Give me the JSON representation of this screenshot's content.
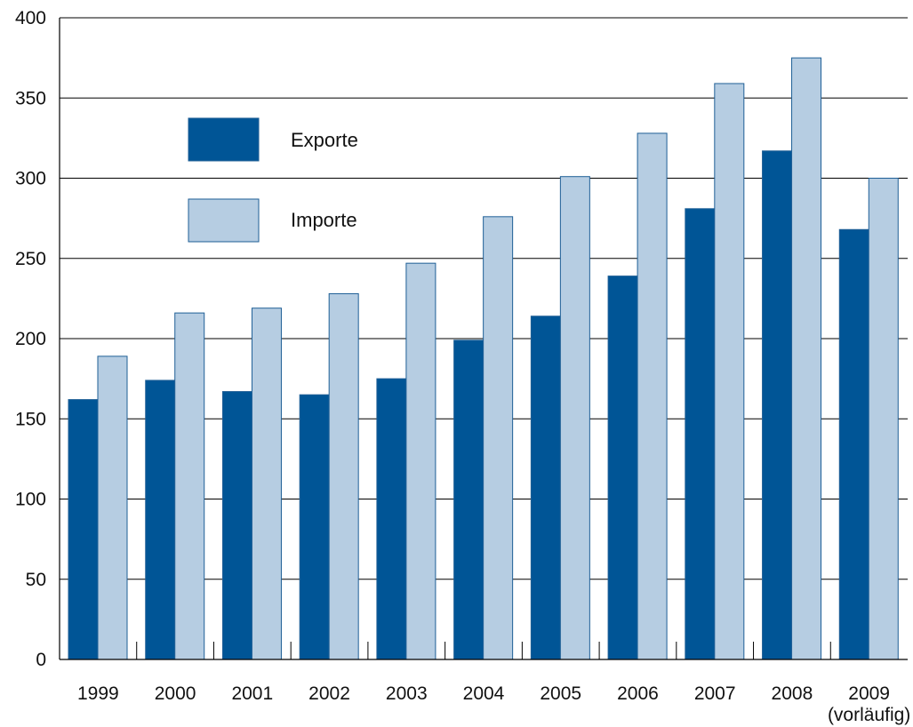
{
  "chart_data": {
    "type": "bar",
    "categories": [
      "1999",
      "2000",
      "2001",
      "2002",
      "2003",
      "2004",
      "2005",
      "2006",
      "2007",
      "2008",
      "2009"
    ],
    "category_sublabels": [
      "",
      "",
      "",
      "",
      "",
      "",
      "",
      "",
      "",
      "",
      "(vorläufig)"
    ],
    "series": [
      {
        "name": "Exporte",
        "color": "#005596",
        "values": [
          162,
          174,
          167,
          165,
          175,
          199,
          214,
          239,
          281,
          317,
          268
        ]
      },
      {
        "name": "Importe",
        "color": "#b6cde2",
        "values": [
          189,
          216,
          219,
          228,
          247,
          276,
          301,
          328,
          359,
          375,
          300
        ]
      }
    ],
    "yticks": [
      "0",
      "50",
      "100",
      "150",
      "200",
      "250",
      "300",
      "350",
      "400"
    ],
    "ylim": [
      0,
      400
    ],
    "grid": true,
    "legend_position": "top-left"
  }
}
